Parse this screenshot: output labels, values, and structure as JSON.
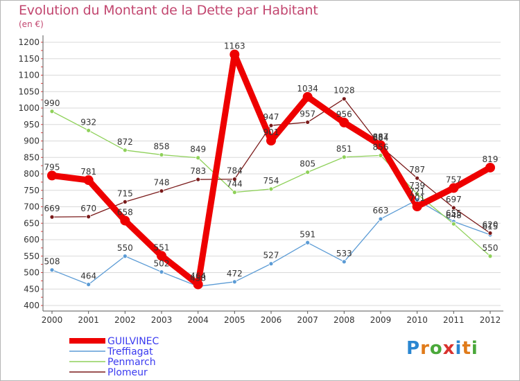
{
  "title": "Evolution du Montant de la Dette par Habitant",
  "unit_label": "(en €)",
  "logo_text": "Proxiti",
  "colors": {
    "GUILVINEC": "#ee0000",
    "Treffiagat": "#5b9bd5",
    "Penmarch": "#8fd15a",
    "Plomeur": "#7a1a1a",
    "title": "#c2466f",
    "grid": "#d9d9d9"
  },
  "chart_data": {
    "type": "line",
    "title": "Evolution du Montant de la Dette par Habitant",
    "ylabel": "(en €)",
    "xlabel": "",
    "ylim": [
      400,
      1200
    ],
    "yticks": [
      400,
      450,
      500,
      550,
      600,
      650,
      700,
      750,
      800,
      850,
      900,
      950,
      1000,
      1050,
      1100,
      1150,
      1200
    ],
    "x": [
      2000,
      2001,
      2002,
      2003,
      2004,
      2005,
      2006,
      2007,
      2008,
      2009,
      2010,
      2011,
      2012
    ],
    "grid": "horizontal",
    "legend_position": "bottom-left",
    "series": [
      {
        "name": "GUILVINEC",
        "values": [
          795,
          781,
          658,
          551,
          464,
          1163,
          901,
          1034,
          956,
          887,
          701,
          757,
          819
        ]
      },
      {
        "name": "Treffiagat",
        "values": [
          508,
          464,
          550,
          502,
          458,
          472,
          527,
          591,
          533,
          663,
          721,
          655,
          615
        ]
      },
      {
        "name": "Penmarch",
        "values": [
          990,
          932,
          872,
          858,
          849,
          744,
          754,
          805,
          851,
          856,
          739,
          648,
          550
        ]
      },
      {
        "name": "Plomeur",
        "values": [
          669,
          670,
          715,
          748,
          783,
          784,
          947,
          957,
          1028,
          884,
          787,
          697,
          620
        ]
      }
    ],
    "data_labels": {
      "GUILVINEC": [
        "795",
        "781",
        "658",
        "551",
        "464",
        "1163",
        "901",
        "1034",
        "956",
        "887",
        "701",
        "757",
        "819"
      ],
      "Treffiagat": [
        "508",
        "464",
        "550",
        "502",
        "458",
        "472",
        "527",
        "591",
        "533",
        "663",
        "721",
        "655",
        "615"
      ],
      "Penmarch": [
        "990",
        "932",
        "872",
        "858",
        "849",
        "744",
        "754",
        "805",
        "851",
        "856",
        "739",
        "648",
        "550"
      ],
      "Plomeur": [
        "669",
        "670",
        "715",
        "748",
        "783",
        "784",
        "947",
        "957",
        "1028",
        "884",
        "787",
        "697",
        "620"
      ]
    }
  }
}
